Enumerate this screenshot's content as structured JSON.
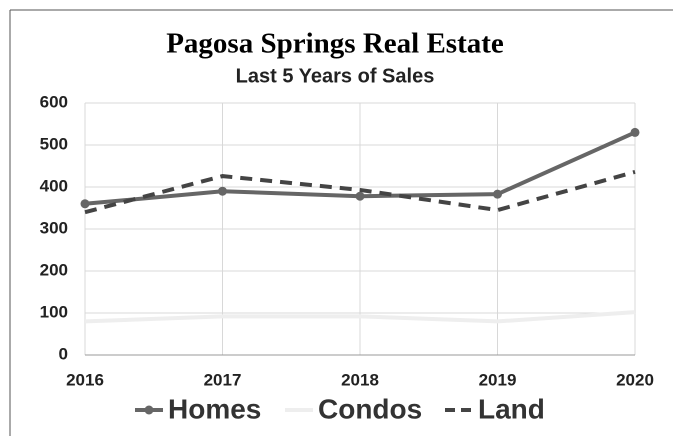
{
  "chart_data": {
    "type": "line",
    "title": "Pagosa Springs Real Estate",
    "subtitle": "Last 5 Years of Sales",
    "categories": [
      "2016",
      "2017",
      "2018",
      "2019",
      "2020"
    ],
    "series": [
      {
        "name": "Homes",
        "color": "#666666",
        "dash": "solid",
        "marker": true,
        "values": [
          360,
          390,
          378,
          383,
          530
        ]
      },
      {
        "name": "Condos",
        "color": "#eeeeee",
        "dash": "solid",
        "marker": false,
        "values": [
          80,
          92,
          92,
          80,
          102
        ]
      },
      {
        "name": "Land",
        "color": "#444444",
        "dash": "dashed",
        "marker": false,
        "values": [
          340,
          426,
          393,
          345,
          436
        ]
      }
    ],
    "ylim": [
      0,
      600
    ],
    "yticks": [
      0,
      100,
      200,
      300,
      400,
      500,
      600
    ],
    "grid": true,
    "legend": "bottom"
  }
}
